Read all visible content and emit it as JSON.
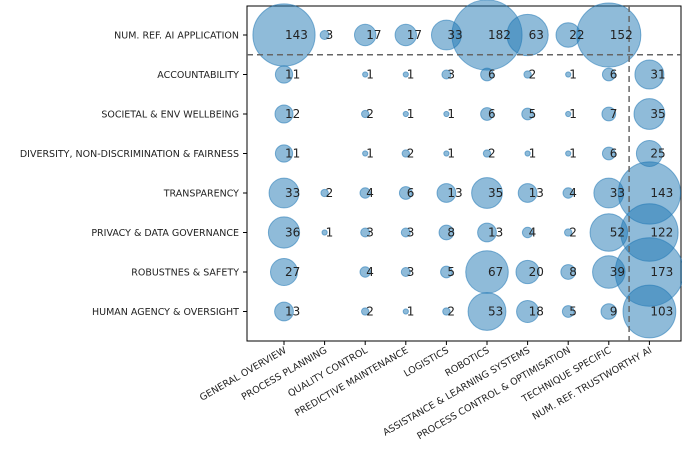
{
  "chart_data": {
    "type": "scatter",
    "x_categories": [
      "GENERAL OVERVIEW",
      "PROCESS PLANNING",
      "QUALITY CONTROL",
      "PREDICTIVE MAINTENANCE",
      "LOGISTICS",
      "ROBOTICS",
      "ASSISTANCE & LEARNING SYSTEMS",
      "PROCESS CONTROL & OPTIMISATION",
      "TECHNIQUE SPECIFIC",
      "NUM. REF. TRUSTWORTHY AI"
    ],
    "y_categories": [
      "NUM. REF. AI APPLICATION",
      "ACCOUNTABILITY",
      "SOCIETAL & ENV WELLBEING",
      "DIVERSITY, NON-DISCRIMINATION & FAIRNESS",
      "TRANSPARENCY",
      "PRIVACY & DATA GOVERNANCE",
      "ROBUSTNES & SAFETY",
      "HUMAN AGENCY & OVERSIGHT"
    ],
    "values": [
      [
        143,
        3,
        17,
        17,
        33,
        182,
        63,
        22,
        152,
        null
      ],
      [
        11,
        null,
        1,
        1,
        3,
        6,
        2,
        1,
        6,
        31
      ],
      [
        12,
        null,
        2,
        1,
        1,
        6,
        5,
        1,
        7,
        35
      ],
      [
        11,
        null,
        1,
        2,
        1,
        2,
        1,
        1,
        6,
        25
      ],
      [
        33,
        2,
        4,
        6,
        13,
        35,
        13,
        4,
        33,
        143
      ],
      [
        36,
        1,
        3,
        3,
        8,
        13,
        4,
        2,
        52,
        122
      ],
      [
        27,
        null,
        4,
        3,
        5,
        67,
        20,
        8,
        39,
        173
      ],
      [
        13,
        null,
        2,
        1,
        2,
        53,
        18,
        5,
        9,
        103
      ]
    ],
    "bubble_color": "#1f77b4",
    "grid": false,
    "separators": "dashed lines isolating the totals row and the totals column"
  }
}
